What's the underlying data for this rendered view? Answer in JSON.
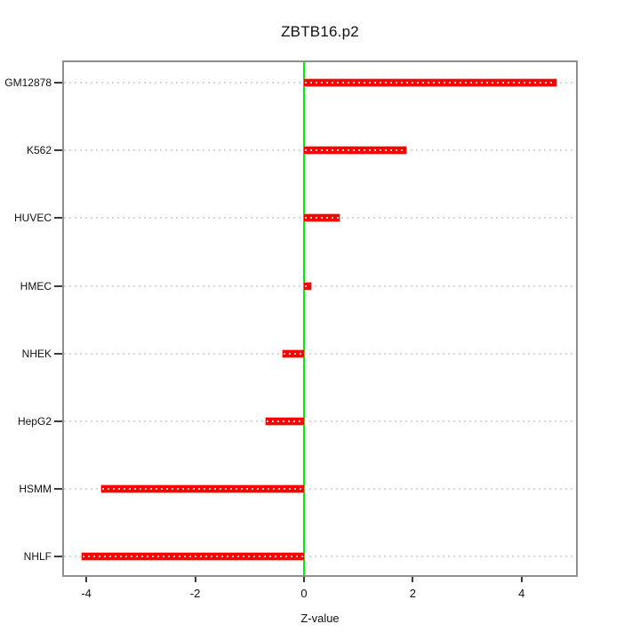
{
  "chart_data": {
    "type": "bar",
    "orientation": "horizontal",
    "title": "ZBTB16.p2",
    "xlabel": "Z-value",
    "categories": [
      "GM12878",
      "K562",
      "HUVEC",
      "HMEC",
      "NHEK",
      "HepG2",
      "HSMM",
      "NHLF"
    ],
    "values": [
      4.64,
      1.88,
      0.65,
      0.13,
      -0.39,
      -0.7,
      -3.73,
      -4.08
    ],
    "xlim": [
      -4.41,
      5.0
    ],
    "x_ticks": [
      -4,
      -2,
      0,
      2,
      4
    ],
    "x_tick_labels": [
      "-4",
      "-2",
      "0",
      "2",
      "4"
    ],
    "grid": "dotted horizontal line per category",
    "legend": "none",
    "colors": {
      "bar": "#fe0000",
      "bar_inner_dots": "#ffffff",
      "zero_line": "#00ee00",
      "gridline": "#d6d6d6",
      "frame": "#8f8f8f",
      "tick": "#3a3a3a",
      "text": "#111111",
      "background": "#ffffff"
    }
  }
}
